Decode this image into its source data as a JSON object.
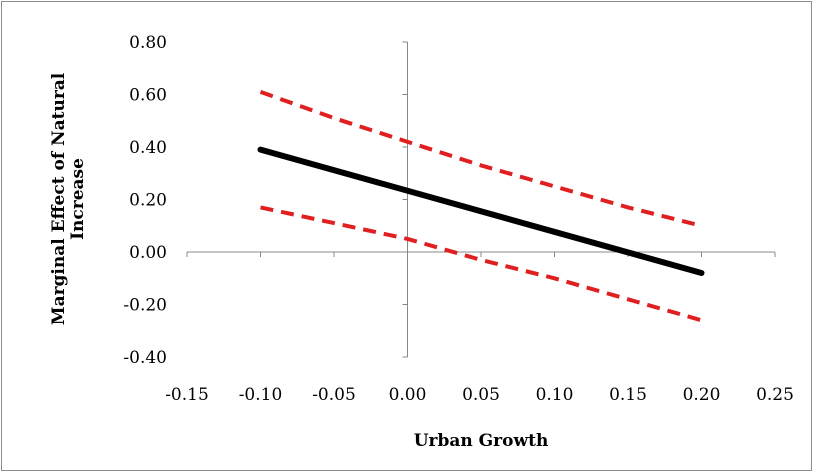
{
  "chart_data": {
    "type": "line",
    "title": "",
    "xlabel": "Urban Growth",
    "ylabel_lines": [
      "Marginal Effect of Natural",
      "Increase"
    ],
    "xlim": [
      -0.15,
      0.25
    ],
    "ylim": [
      -0.4,
      0.8
    ],
    "x_ticks": [
      "-0.15",
      "-0.10",
      "-0.05",
      "0.00",
      "0.05",
      "0.10",
      "0.15",
      "0.20",
      "0.25"
    ],
    "y_ticks": [
      "0.80",
      "0.60",
      "0.40",
      "0.20",
      "0.00",
      "-0.20",
      "-0.40"
    ],
    "legend": "none",
    "grid": false,
    "series": [
      {
        "style": "solid",
        "color": "#000000",
        "x": [
          -0.1,
          0.2
        ],
        "y": [
          0.39,
          -0.08
        ]
      },
      {
        "style": "dashed",
        "color": "#e02020",
        "x": [
          -0.1,
          -0.05,
          0.0,
          0.05,
          0.1,
          0.15,
          0.2
        ],
        "y": [
          0.61,
          0.51,
          0.42,
          0.33,
          0.25,
          0.17,
          0.1
        ]
      },
      {
        "style": "dashed",
        "color": "#e02020",
        "x": [
          -0.1,
          -0.05,
          0.0,
          0.05,
          0.1,
          0.15,
          0.2
        ],
        "y": [
          0.17,
          0.11,
          0.05,
          -0.03,
          -0.1,
          -0.18,
          -0.26
        ]
      }
    ]
  }
}
